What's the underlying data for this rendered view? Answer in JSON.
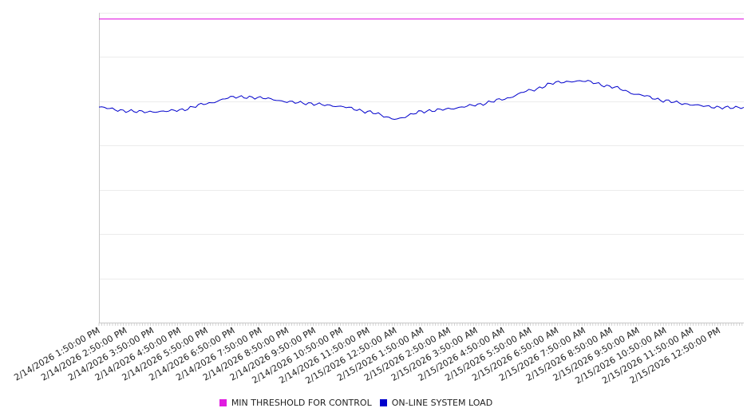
{
  "chart_data": {
    "type": "line",
    "x": [
      "2/14/2026 1:50:00 PM",
      "2/14/2026 2:50:00 PM",
      "2/14/2026 3:50:00 PM",
      "2/14/2026 4:50:00 PM",
      "2/14/2026 5:50:00 PM",
      "2/14/2026 6:50:00 PM",
      "2/14/2026 7:50:00 PM",
      "2/14/2026 8:50:00 PM",
      "2/14/2026 9:50:00 PM",
      "2/14/2026 10:50:00 PM",
      "2/14/2026 11:50:00 PM",
      "2/15/2026 12:50:00 AM",
      "2/15/2026 1:50:00 AM",
      "2/15/2026 2:50:00 AM",
      "2/15/2026 3:50:00 AM",
      "2/15/2026 4:50:00 AM",
      "2/15/2026 5:50:00 AM",
      "2/15/2026 6:50:00 AM",
      "2/15/2026 7:50:00 AM",
      "2/15/2026 8:50:00 AM",
      "2/15/2026 9:50:00 AM",
      "2/15/2026 10:50:00 AM",
      "2/15/2026 11:50:00 AM",
      "2/15/2026 12:50:00 PM"
    ],
    "ylim": [
      0,
      700
    ],
    "gridlines": 7,
    "series": [
      {
        "name": "MIN THRESHOLD FOR CONTROL",
        "color": "#e01ce0",
        "values": [
          686,
          686,
          686,
          686,
          686,
          686,
          686,
          686,
          686,
          686,
          686,
          686,
          686,
          686,
          686,
          686,
          686,
          686,
          686,
          686,
          686,
          686,
          686,
          686
        ]
      },
      {
        "name": "ON-LINE SYSTEM LOAD",
        "color": "#0000cc",
        "values": [
          487,
          478,
          476,
          480,
          495,
          510,
          508,
          499,
          494,
          488,
          476,
          460,
          477,
          483,
          492,
          505,
          525,
          543,
          546,
          533,
          515,
          501,
          492,
          486
        ]
      }
    ]
  }
}
